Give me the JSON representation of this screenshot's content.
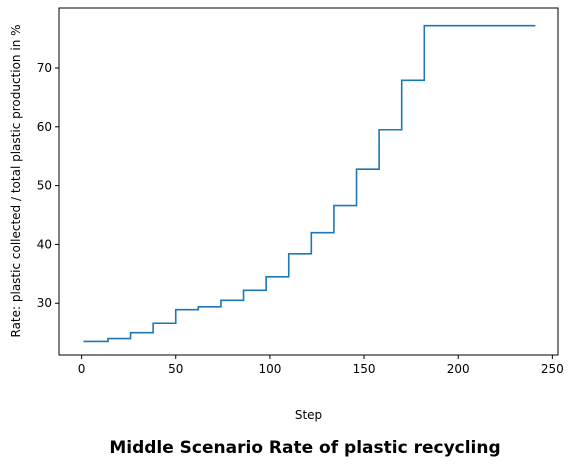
{
  "chart_data": {
    "type": "line",
    "title": "Middle Scenario Rate of plastic recycling",
    "xlabel": "Step",
    "ylabel": "Rate: plastic collected / total plastic production in %",
    "xlim": [
      -12,
      253
    ],
    "ylim": [
      21.2,
      80.2
    ],
    "x_ticks": [
      0,
      50,
      100,
      150,
      200,
      250
    ],
    "y_ticks": [
      30,
      40,
      50,
      60,
      70
    ],
    "x_tick_labels": [
      "0",
      "50",
      "100",
      "150",
      "200",
      "250"
    ],
    "y_tick_labels": [
      "30",
      "40",
      "50",
      "60",
      "70"
    ],
    "grid": false,
    "legend": "none",
    "series": [
      {
        "color": "#1f77b4",
        "x": [
          1,
          14,
          14,
          26,
          26,
          38,
          38,
          50,
          50,
          62,
          62,
          74,
          74,
          86,
          86,
          98,
          98,
          110,
          110,
          122,
          122,
          134,
          134,
          146,
          146,
          158,
          158,
          170,
          170,
          182,
          182,
          241
        ],
        "y": [
          23.5,
          23.5,
          24.0,
          24.0,
          25.0,
          25.0,
          26.6,
          26.6,
          28.9,
          28.9,
          29.4,
          29.4,
          30.5,
          30.5,
          32.2,
          32.2,
          34.5,
          34.5,
          38.4,
          38.4,
          42.0,
          42.0,
          46.6,
          46.6,
          52.8,
          52.8,
          59.5,
          59.5,
          67.9,
          67.9,
          77.2,
          77.2
        ]
      }
    ]
  }
}
